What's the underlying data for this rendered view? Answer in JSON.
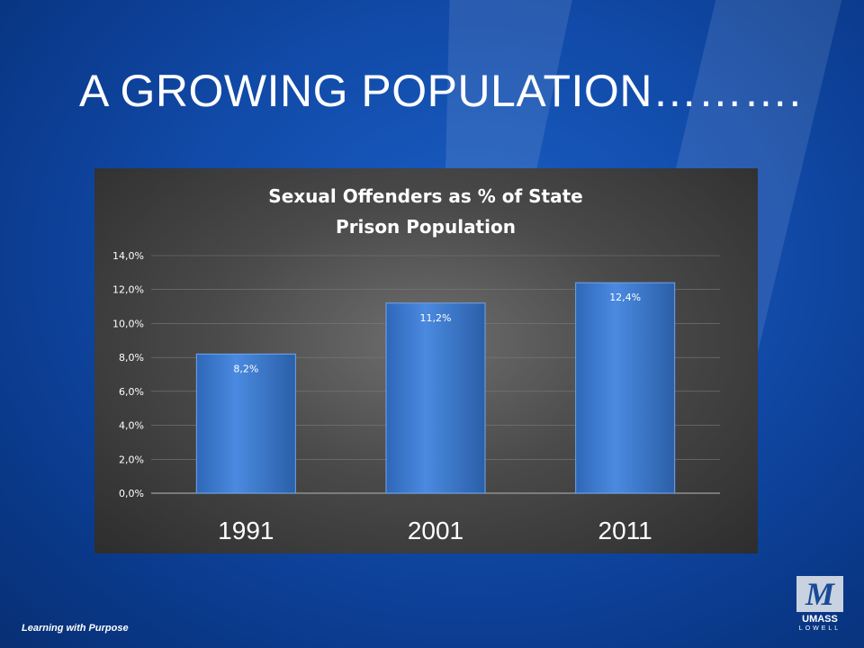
{
  "slide": {
    "title": "A GROWING POPULATION……….",
    "footer": "Learning with Purpose",
    "logo": {
      "monogram": "M",
      "name": "UMASS",
      "sub": "LOWELL"
    }
  },
  "colors": {
    "bar": "#3f7fd6",
    "bar_dark": "#2b5fa8",
    "grid": "#7a7a7a",
    "text": "#ffffff"
  },
  "chart_data": {
    "type": "bar",
    "title": "Sexual Offenders as % of State Prison Population",
    "title_lines": [
      "Sexual Offenders as % of State",
      "Prison Population"
    ],
    "categories": [
      "1991",
      "2001",
      "2011"
    ],
    "values": [
      8.2,
      11.2,
      12.4
    ],
    "data_labels": [
      "8,2%",
      "11,2%",
      "12,4%"
    ],
    "yticks": [
      0,
      2,
      4,
      6,
      8,
      10,
      12,
      14
    ],
    "ytick_labels": [
      "0,0%",
      "2,0%",
      "4,0%",
      "6,0%",
      "8,0%",
      "10,0%",
      "12,0%",
      "14,0%"
    ],
    "ylim": [
      0,
      14
    ],
    "xlabel": "",
    "ylabel": "",
    "grid": true,
    "legend": "none"
  }
}
